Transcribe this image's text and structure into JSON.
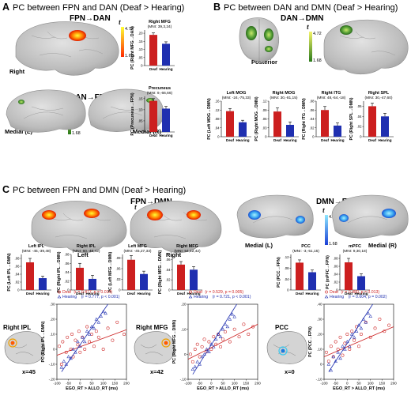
{
  "figure": {
    "panels": [
      {
        "letter": "A",
        "title": "PC between FPN and DAN (Deaf > Hearing)"
      },
      {
        "letter": "B",
        "title": "PC between DAN and DMN (Deaf > Hearing)"
      },
      {
        "letter": "C",
        "title": "PC between FPN and DMN (Deaf > Hearing)"
      }
    ],
    "connections": {
      "fpn_dan": "FPN→DAN",
      "dan_fpn": "DAN→FPN",
      "dan_dmn": "DAN→DMN",
      "fpn_dmn": "FPN→DMN",
      "dmn_fpn": "DMN→FPN"
    },
    "views": {
      "right": "Right",
      "medial_l": "Medial (L)",
      "medial_r": "Medial (R)",
      "posterior": "Posterior",
      "left": "Left"
    },
    "colorbar": {
      "symbol": "t",
      "max": "4.72",
      "min": "1.68"
    },
    "colors": {
      "deaf": "#cc1f1f",
      "hearing": "#1f2fb0",
      "hot_low": "#ff2a00",
      "hot_high": "#ffff33",
      "green_low": "#2a7a1a",
      "green_high": "#f4f46a",
      "blue_low": "#1a3fd6",
      "blue_high": "#8ee8ff",
      "cortex": "#c7c7c7"
    },
    "scatter_rows": [
      {
        "view": "Right IPL",
        "coord": "x=45"
      },
      {
        "view": "Right MFG",
        "coord": "x=42"
      },
      {
        "view": "PCC",
        "coord": "x=0"
      }
    ]
  },
  "chart_data": [
    {
      "id": "A1",
      "type": "bar",
      "panel": "A",
      "title": "Right MFG",
      "subtitle": "(MNI: 39,3,24)",
      "ylabel": "PC (Right MFG→DAN)",
      "categories": [
        "Deaf",
        "Hearing"
      ],
      "values": [
        0.19,
        0.135
      ],
      "errors": [
        0.012,
        0.012
      ],
      "yticks": [
        0.0,
        0.05,
        0.1,
        0.15,
        0.2
      ],
      "ytick_labels": [
        "0",
        ".05",
        ".10",
        ".15",
        ".20"
      ],
      "ylim": [
        0,
        0.22
      ]
    },
    {
      "id": "A2",
      "type": "bar",
      "panel": "A",
      "title": "Precuneus",
      "subtitle": "(MNI: 9,-66,66)",
      "ylabel": "PC (Precuneus→FPN)",
      "categories": [
        "Deaf",
        "Hearing"
      ],
      "values": [
        0.14,
        0.105
      ],
      "errors": [
        0.01,
        0.01
      ],
      "yticks": [
        0.0,
        0.05,
        0.1,
        0.15
      ],
      "ytick_labels": [
        "0",
        ".05",
        ".10",
        ".15"
      ],
      "ylim": [
        0,
        0.16
      ]
    },
    {
      "id": "B1",
      "type": "bar",
      "panel": "B",
      "title": "Left MOG",
      "subtitle": "(MNI: -24,-75,33)",
      "ylabel": "PC (Left MOG→DMN)",
      "categories": [
        "Deaf",
        "Hearing"
      ],
      "values": [
        0.115,
        0.065
      ],
      "errors": [
        0.012,
        0.009
      ],
      "yticks": [
        0.0,
        0.04,
        0.08,
        0.12,
        0.16
      ],
      "ytick_labels": [
        "0",
        ".04",
        ".08",
        ".12",
        ".16"
      ],
      "ylim": [
        0,
        0.16
      ]
    },
    {
      "id": "B2",
      "type": "bar",
      "panel": "B",
      "title": "Right MOG",
      "subtitle": "(MNI: 30,-81,15)",
      "ylabel": "PC (Right MOG→DMN)",
      "categories": [
        "Deaf",
        "Hearing"
      ],
      "values": [
        0.085,
        0.04
      ],
      "errors": [
        0.012,
        0.01
      ],
      "yticks": [
        0.0,
        0.03,
        0.06,
        0.09,
        0.12
      ],
      "ytick_labels": [
        "0",
        ".03",
        ".06",
        ".09",
        ".12"
      ],
      "ylim": [
        0,
        0.12
      ]
    },
    {
      "id": "B3",
      "type": "bar",
      "panel": "B",
      "title": "Right ITG",
      "subtitle": "(MNI: 48,-54,-18)",
      "ylabel": "PC (Right ITG→DMN)",
      "categories": [
        "Deaf",
        "Hearing"
      ],
      "values": [
        0.06,
        0.025
      ],
      "errors": [
        0.008,
        0.006
      ],
      "yticks": [
        0.0,
        0.02,
        0.04,
        0.06,
        0.08
      ],
      "ytick_labels": [
        "0",
        ".02",
        ".04",
        ".06",
        ".08"
      ],
      "ylim": [
        0,
        0.08
      ]
    },
    {
      "id": "B4",
      "type": "bar",
      "panel": "B",
      "title": "Right SPL",
      "subtitle": "(MNI: 30,-47,60)",
      "ylabel": "PC (Right SPL→DMN)",
      "categories": [
        "Deaf",
        "Hearing"
      ],
      "values": [
        0.06,
        0.04
      ],
      "errors": [
        0.006,
        0.006
      ],
      "yticks": [
        0.0,
        0.02,
        0.04,
        0.06
      ],
      "ytick_labels": [
        "0",
        ".02",
        ".04",
        ".06"
      ],
      "ylim": [
        0,
        0.07
      ]
    },
    {
      "id": "C1",
      "type": "bar",
      "panel": "C",
      "title": "Left IPL",
      "subtitle": "(MNI: -45,-39,48)",
      "ylabel": "PC (Left IPL→DMN)",
      "categories": [
        "Deaf",
        "Hearing"
      ],
      "values": [
        0.07,
        0.03
      ],
      "errors": [
        0.01,
        0.005
      ],
      "yticks": [
        0.0,
        0.02,
        0.04,
        0.06,
        0.08
      ],
      "ytick_labels": [
        "0",
        ".02",
        ".04",
        ".06",
        ".08"
      ],
      "ylim": [
        0,
        0.09
      ]
    },
    {
      "id": "C2",
      "type": "bar",
      "panel": "C",
      "title": "Right IPL",
      "subtitle": "(MNI: 60,-48,42)",
      "ylabel": "PC (Right IPL→DMN)",
      "categories": [
        "Deaf",
        "Hearing"
      ],
      "values": [
        0.05,
        0.025
      ],
      "errors": [
        0.01,
        0.008
      ],
      "yticks": [
        0.0,
        0.02,
        0.04,
        0.06,
        0.08
      ],
      "ytick_labels": [
        "0",
        ".02",
        ".04",
        ".06",
        ".08"
      ],
      "ylim": [
        0,
        0.08
      ]
    },
    {
      "id": "C3",
      "type": "bar",
      "panel": "C",
      "title": "Left MFG",
      "subtitle": "(MNI: -45,27,33)",
      "ylabel": "PC (Left MFG→DMN)",
      "categories": [
        "Deaf",
        "Hearing"
      ],
      "values": [
        0.085,
        0.045
      ],
      "errors": [
        0.012,
        0.008
      ],
      "yticks": [
        0.0,
        0.03,
        0.06,
        0.09
      ],
      "ytick_labels": [
        "0",
        ".03",
        ".06",
        ".09"
      ],
      "ylim": [
        0,
        0.1
      ]
    },
    {
      "id": "C4",
      "type": "bar",
      "panel": "C",
      "title": "Right MFG",
      "subtitle": "(MNI: 54,12,42)",
      "ylabel": "PC (Right MFG→DMN)",
      "categories": [
        "Deaf",
        "Hearing"
      ],
      "values": [
        0.05,
        0.04
      ],
      "errors": [
        0.006,
        0.006
      ],
      "yticks": [
        0.0,
        0.02,
        0.04,
        0.06
      ],
      "ytick_labels": [
        "0",
        ".02",
        ".04",
        ".06"
      ],
      "ylim": [
        0,
        0.07
      ]
    },
    {
      "id": "C5",
      "type": "bar",
      "panel": "C",
      "title": "PCC",
      "subtitle": "(MNI: -3,-51,15)",
      "ylabel": "PC (PCC→FPN)",
      "categories": [
        "Deaf",
        "Hearing"
      ],
      "values": [
        0.1,
        0.065
      ],
      "errors": [
        0.01,
        0.008
      ],
      "yticks": [
        0.0,
        0.04,
        0.08,
        0.12
      ],
      "ytick_labels": [
        "0",
        ".04",
        ".08",
        ".12"
      ],
      "ylim": [
        0,
        0.13
      ]
    },
    {
      "id": "C6",
      "type": "bar",
      "panel": "C",
      "title": "mPFC",
      "subtitle": "(MNI: 9,30,18)",
      "ylabel": "PC (mPFC→FPN)",
      "categories": [
        "Deaf",
        "Hearing"
      ],
      "values": [
        0.07,
        0.035
      ],
      "errors": [
        0.01,
        0.006
      ],
      "yticks": [
        0.0,
        0.02,
        0.04,
        0.06,
        0.08
      ],
      "ytick_labels": [
        "0",
        ".02",
        ".04",
        ".06",
        ".08"
      ],
      "ylim": [
        0,
        0.09
      ]
    },
    {
      "id": "S1",
      "type": "scatter",
      "panel": "C",
      "xlabel": "EGO_RT > ALLO_RT (ms)",
      "ylabel": "PC (Right IPL→DMN)",
      "xlim": [
        -100,
        200
      ],
      "ylim": [
        -0.2,
        0.3
      ],
      "xticks": [
        -100,
        -50,
        0,
        50,
        100,
        150,
        200
      ],
      "yticks": [
        -0.2,
        -0.1,
        0.0,
        0.1,
        0.2,
        0.3
      ],
      "ytick_labels": [
        "-.20",
        "-.10",
        "0",
        ".10",
        ".20",
        ".30"
      ],
      "series": [
        {
          "name": "Deaf",
          "marker": "circle",
          "stats": "(r = 0.477, p = 0.014)",
          "fit": [
            [
              -100,
              -0.04
            ],
            [
              200,
              0.13
            ]
          ],
          "x": [
            -90,
            -80,
            -75,
            -60,
            -55,
            -40,
            -35,
            -30,
            -20,
            -10,
            -5,
            0,
            10,
            20,
            30,
            40,
            50,
            60,
            70,
            80,
            100,
            120,
            140,
            160,
            190
          ],
          "y": [
            0.02,
            -0.1,
            0.05,
            -0.02,
            0.08,
            0.0,
            0.1,
            -0.05,
            0.06,
            0.03,
            0.12,
            -0.02,
            0.08,
            0.0,
            0.15,
            0.05,
            0.1,
            0.02,
            0.12,
            0.08,
            0.0,
            0.14,
            0.06,
            0.18,
            0.1
          ]
        },
        {
          "name": "Hearing",
          "marker": "triangle",
          "stats": "(r = 0.777, p < 0.001)",
          "fit": [
            [
              -80,
              -0.15
            ],
            [
              120,
              0.3
            ]
          ],
          "x": [
            -80,
            -70,
            -60,
            -50,
            -40,
            -30,
            -20,
            -10,
            0,
            10,
            20,
            30,
            40,
            50,
            60,
            70,
            80,
            90,
            100,
            110
          ],
          "y": [
            -0.12,
            -0.08,
            -0.1,
            -0.05,
            -0.06,
            0.0,
            -0.02,
            0.05,
            0.02,
            0.08,
            0.05,
            0.12,
            0.1,
            0.15,
            0.14,
            0.2,
            0.18,
            0.22,
            0.25,
            0.24
          ]
        }
      ]
    },
    {
      "id": "S2",
      "type": "scatter",
      "panel": "C",
      "xlabel": "EGO_RT > ALLO_RT (ms)",
      "ylabel": "PC (Right MFG→DMN)",
      "xlim": [
        -100,
        200
      ],
      "ylim": [
        -0.1,
        0.2
      ],
      "xticks": [
        -100,
        -50,
        0,
        50,
        100,
        150,
        200
      ],
      "yticks": [
        -0.1,
        0.0,
        0.1,
        0.2
      ],
      "ytick_labels": [
        "-.10",
        "0",
        ".10",
        ".20"
      ],
      "series": [
        {
          "name": "Deaf",
          "marker": "circle",
          "stats": "(r = 0.529, p = 0.005)",
          "fit": [
            [
              -100,
              -0.02
            ],
            [
              200,
              0.12
            ]
          ],
          "x": [
            -90,
            -80,
            -70,
            -60,
            -50,
            -40,
            -30,
            -20,
            -10,
            0,
            10,
            20,
            30,
            40,
            50,
            60,
            80,
            100,
            120,
            140,
            160,
            180
          ],
          "y": [
            0.0,
            -0.03,
            0.02,
            0.04,
            -0.01,
            0.03,
            0.06,
            0.01,
            0.05,
            0.02,
            0.07,
            0.04,
            0.08,
            0.03,
            0.06,
            0.09,
            0.05,
            0.1,
            0.07,
            0.12,
            0.08,
            0.11
          ]
        },
        {
          "name": "Hearing",
          "marker": "triangle",
          "stats": "(r = 0.721, p < 0.001)",
          "fit": [
            [
              -80,
              -0.08
            ],
            [
              110,
              0.2
            ]
          ],
          "x": [
            -80,
            -70,
            -60,
            -50,
            -40,
            -30,
            -20,
            -10,
            0,
            10,
            20,
            30,
            40,
            50,
            60,
            70,
            80,
            90,
            100
          ],
          "y": [
            -0.06,
            -0.05,
            -0.03,
            -0.04,
            -0.01,
            0.0,
            0.02,
            0.01,
            0.04,
            0.03,
            0.06,
            0.08,
            0.07,
            0.1,
            0.12,
            0.11,
            0.14,
            0.16,
            0.15
          ]
        }
      ]
    },
    {
      "id": "S3",
      "type": "scatter",
      "panel": "C",
      "xlabel": "EGO_RT > ALLO_RT (ms)",
      "ylabel": "PC (PCC→FPN)",
      "xlim": [
        -100,
        200
      ],
      "ylim": [
        -0.1,
        0.4
      ],
      "xticks": [
        -100,
        -50,
        0,
        50,
        100,
        150,
        200
      ],
      "yticks": [
        -0.1,
        0.0,
        0.1,
        0.2,
        0.3,
        0.4
      ],
      "ytick_labels": [
        "-.10",
        "0",
        ".10",
        ".20",
        ".30",
        ".40"
      ],
      "series": [
        {
          "name": "Deaf",
          "marker": "circle",
          "stats": "(r = 0.480, p = 0.013)",
          "fit": [
            [
              -100,
              0.05
            ],
            [
              200,
              0.25
            ]
          ],
          "x": [
            -90,
            -80,
            -70,
            -60,
            -50,
            -40,
            -30,
            -20,
            -10,
            0,
            10,
            20,
            30,
            40,
            50,
            60,
            80,
            100,
            120,
            140,
            160,
            180
          ],
          "y": [
            0.08,
            0.02,
            0.12,
            0.05,
            0.15,
            0.1,
            0.18,
            0.06,
            0.14,
            0.2,
            0.1,
            0.22,
            0.16,
            0.25,
            0.12,
            0.2,
            0.28,
            0.18,
            0.24,
            0.3,
            0.22,
            0.26
          ]
        },
        {
          "name": "Hearing",
          "marker": "triangle",
          "stats": "(r = 0.604, p = 0.002)",
          "fit": [
            [
              -80,
              -0.05
            ],
            [
              110,
              0.4
            ]
          ],
          "x": [
            -80,
            -70,
            -60,
            -50,
            -40,
            -30,
            -20,
            -10,
            0,
            10,
            20,
            30,
            40,
            50,
            60,
            70,
            80,
            90,
            100
          ],
          "y": [
            0.0,
            -0.04,
            0.05,
            0.02,
            0.08,
            0.04,
            0.12,
            0.1,
            0.15,
            0.12,
            0.2,
            0.18,
            0.22,
            0.26,
            0.24,
            0.3,
            0.28,
            0.34,
            0.32
          ]
        }
      ]
    }
  ]
}
